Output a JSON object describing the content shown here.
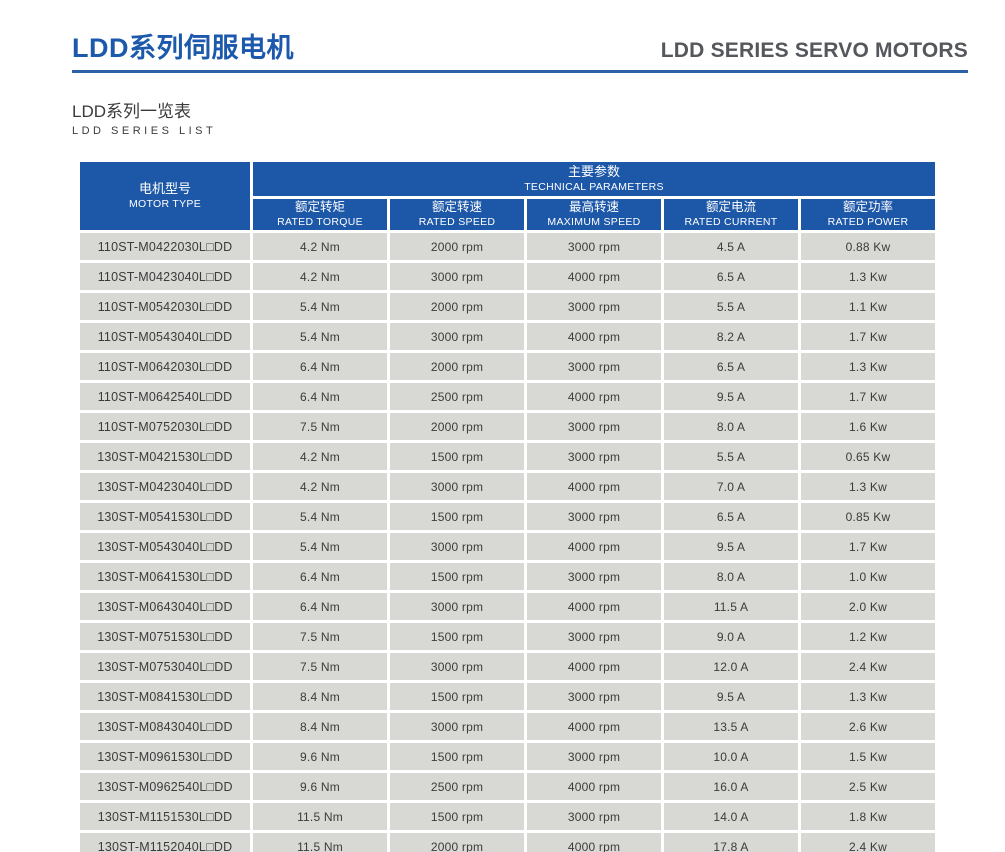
{
  "page": {
    "title_cn": "LDD系列伺服电机",
    "title_en": "LDD SERIES SERVO MOTORS",
    "subtitle_cn": "LDD系列一览表",
    "subtitle_en": "LDD SERIES LIST"
  },
  "colors": {
    "accent_blue": "#1c58ab",
    "rule_blue": "#2e5fa9",
    "header_blue": "#1d57a8",
    "title_gray": "#54575b",
    "cell_gray": "#d8d8d4",
    "text_gray": "#3b3b3b"
  },
  "table": {
    "header": {
      "motor_type_cn": "电机型号",
      "motor_type_en": "MOTOR TYPE",
      "group_cn": "主要参数",
      "group_en": "TECHNICAL PARAMETERS",
      "columns": [
        {
          "cn": "额定转矩",
          "en": "RATED TORQUE"
        },
        {
          "cn": "额定转速",
          "en": "RATED SPEED"
        },
        {
          "cn": "最高转速",
          "en": "MAXIMUM SPEED"
        },
        {
          "cn": "额定电流",
          "en": "RATED CURRENT"
        },
        {
          "cn": "额定功率",
          "en": "RATED POWER"
        }
      ]
    },
    "rows": [
      {
        "motor_type": "110ST-M0422030L□DD",
        "rated_torque": "4.2 Nm",
        "rated_speed": "2000 rpm",
        "maximum_speed": "3000 rpm",
        "rated_current": "4.5 A",
        "rated_power": "0.88 Kw"
      },
      {
        "motor_type": "110ST-M0423040L□DD",
        "rated_torque": "4.2 Nm",
        "rated_speed": "3000 rpm",
        "maximum_speed": "4000 rpm",
        "rated_current": "6.5 A",
        "rated_power": "1.3 Kw"
      },
      {
        "motor_type": "110ST-M0542030L□DD",
        "rated_torque": "5.4 Nm",
        "rated_speed": "2000 rpm",
        "maximum_speed": "3000 rpm",
        "rated_current": "5.5 A",
        "rated_power": "1.1 Kw"
      },
      {
        "motor_type": "110ST-M0543040L□DD",
        "rated_torque": "5.4 Nm",
        "rated_speed": "3000 rpm",
        "maximum_speed": "4000 rpm",
        "rated_current": "8.2 A",
        "rated_power": "1.7 Kw"
      },
      {
        "motor_type": "110ST-M0642030L□DD",
        "rated_torque": "6.4 Nm",
        "rated_speed": "2000 rpm",
        "maximum_speed": "3000 rpm",
        "rated_current": "6.5 A",
        "rated_power": "1.3 Kw"
      },
      {
        "motor_type": "110ST-M0642540L□DD",
        "rated_torque": "6.4 Nm",
        "rated_speed": "2500 rpm",
        "maximum_speed": "4000 rpm",
        "rated_current": "9.5 A",
        "rated_power": "1.7 Kw"
      },
      {
        "motor_type": "110ST-M0752030L□DD",
        "rated_torque": "7.5 Nm",
        "rated_speed": "2000 rpm",
        "maximum_speed": "3000 rpm",
        "rated_current": "8.0 A",
        "rated_power": "1.6 Kw"
      },
      {
        "motor_type": "130ST-M0421530L□DD",
        "rated_torque": "4.2 Nm",
        "rated_speed": "1500 rpm",
        "maximum_speed": "3000 rpm",
        "rated_current": "5.5 A",
        "rated_power": "0.65 Kw"
      },
      {
        "motor_type": "130ST-M0423040L□DD",
        "rated_torque": "4.2 Nm",
        "rated_speed": "3000 rpm",
        "maximum_speed": "4000 rpm",
        "rated_current": "7.0 A",
        "rated_power": "1.3 Kw"
      },
      {
        "motor_type": "130ST-M0541530L□DD",
        "rated_torque": "5.4 Nm",
        "rated_speed": "1500 rpm",
        "maximum_speed": "3000 rpm",
        "rated_current": "6.5 A",
        "rated_power": "0.85 Kw"
      },
      {
        "motor_type": "130ST-M0543040L□DD",
        "rated_torque": "5.4 Nm",
        "rated_speed": "3000 rpm",
        "maximum_speed": "4000 rpm",
        "rated_current": "9.5 A",
        "rated_power": "1.7 Kw"
      },
      {
        "motor_type": "130ST-M0641530L□DD",
        "rated_torque": "6.4 Nm",
        "rated_speed": "1500 rpm",
        "maximum_speed": "3000 rpm",
        "rated_current": "8.0 A",
        "rated_power": "1.0 Kw"
      },
      {
        "motor_type": "130ST-M0643040L□DD",
        "rated_torque": "6.4 Nm",
        "rated_speed": "3000 rpm",
        "maximum_speed": "4000 rpm",
        "rated_current": "11.5 A",
        "rated_power": "2.0 Kw"
      },
      {
        "motor_type": "130ST-M0751530L□DD",
        "rated_torque": "7.5 Nm",
        "rated_speed": "1500 rpm",
        "maximum_speed": "3000 rpm",
        "rated_current": "9.0 A",
        "rated_power": "1.2 Kw"
      },
      {
        "motor_type": "130ST-M0753040L□DD",
        "rated_torque": "7.5 Nm",
        "rated_speed": "3000 rpm",
        "maximum_speed": "4000 rpm",
        "rated_current": "12.0 A",
        "rated_power": "2.4 Kw"
      },
      {
        "motor_type": "130ST-M0841530L□DD",
        "rated_torque": "8.4 Nm",
        "rated_speed": "1500 rpm",
        "maximum_speed": "3000 rpm",
        "rated_current": "9.5 A",
        "rated_power": "1.3 Kw"
      },
      {
        "motor_type": "130ST-M0843040L□DD",
        "rated_torque": "8.4 Nm",
        "rated_speed": "3000 rpm",
        "maximum_speed": "4000 rpm",
        "rated_current": "13.5 A",
        "rated_power": "2.6 Kw"
      },
      {
        "motor_type": "130ST-M0961530L□DD",
        "rated_torque": "9.6 Nm",
        "rated_speed": "1500 rpm",
        "maximum_speed": "3000 rpm",
        "rated_current": "10.0 A",
        "rated_power": "1.5 Kw"
      },
      {
        "motor_type": "130ST-M0962540L□DD",
        "rated_torque": "9.6 Nm",
        "rated_speed": "2500 rpm",
        "maximum_speed": "4000 rpm",
        "rated_current": "16.0 A",
        "rated_power": "2.5 Kw"
      },
      {
        "motor_type": "130ST-M1151530L□DD",
        "rated_torque": "11.5 Nm",
        "rated_speed": "1500 rpm",
        "maximum_speed": "3000 rpm",
        "rated_current": "14.0 A",
        "rated_power": "1.8 Kw"
      },
      {
        "motor_type": "130ST-M1152040L□DD",
        "rated_torque": "11.5 Nm",
        "rated_speed": "2000 rpm",
        "maximum_speed": "4000 rpm",
        "rated_current": "17.8 A",
        "rated_power": "2.4 Kw"
      }
    ]
  }
}
